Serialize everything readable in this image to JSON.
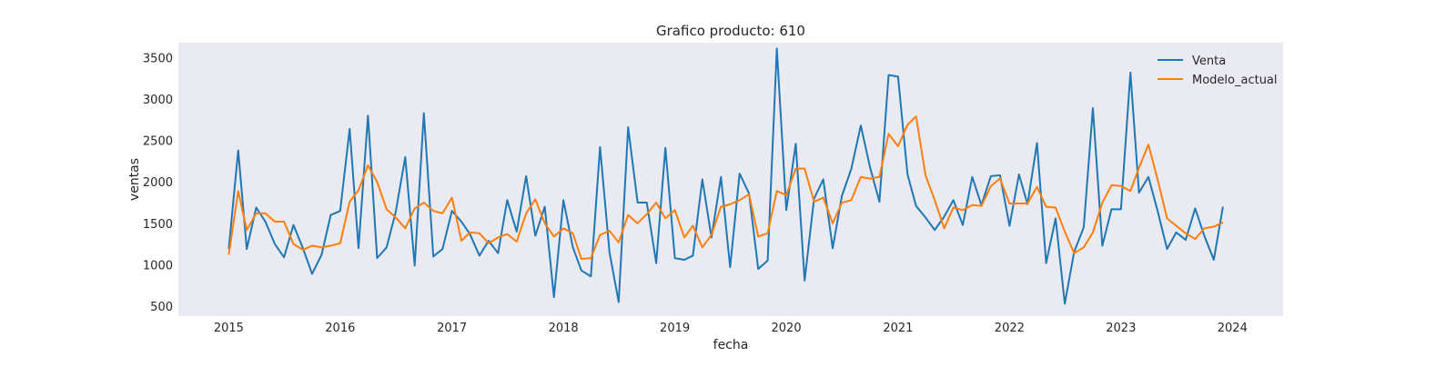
{
  "chart_data": {
    "type": "line",
    "title": "Grafico producto: 610",
    "xlabel": "fecha",
    "ylabel": "ventas",
    "x_ticks": [
      "2015",
      "2016",
      "2017",
      "2018",
      "2019",
      "2020",
      "2021",
      "2022",
      "2023",
      "2024"
    ],
    "y_ticks": [
      500,
      1000,
      1500,
      2000,
      2500,
      3000,
      3500
    ],
    "xlim": [
      "2014-07-20",
      "2024-06-15"
    ],
    "ylim": [
      380,
      3680
    ],
    "grid": false,
    "legend": "top-right",
    "x": [
      "2015-01",
      "2015-02",
      "2015-03",
      "2015-04",
      "2015-05",
      "2015-06",
      "2015-07",
      "2015-08",
      "2015-09",
      "2015-10",
      "2015-11",
      "2015-12",
      "2016-01",
      "2016-02",
      "2016-03",
      "2016-04",
      "2016-05",
      "2016-06",
      "2016-07",
      "2016-08",
      "2016-09",
      "2016-10",
      "2016-11",
      "2016-12",
      "2017-01",
      "2017-02",
      "2017-03",
      "2017-04",
      "2017-05",
      "2017-06",
      "2017-07",
      "2017-08",
      "2017-09",
      "2017-10",
      "2017-11",
      "2017-12",
      "2018-01",
      "2018-02",
      "2018-03",
      "2018-04",
      "2018-05",
      "2018-06",
      "2018-07",
      "2018-08",
      "2018-09",
      "2018-10",
      "2018-11",
      "2018-12",
      "2019-01",
      "2019-02",
      "2019-03",
      "2019-04",
      "2019-05",
      "2019-06",
      "2019-07",
      "2019-08",
      "2019-09",
      "2019-10",
      "2019-11",
      "2019-12",
      "2020-01",
      "2020-02",
      "2020-03",
      "2020-04",
      "2020-05",
      "2020-06",
      "2020-07",
      "2020-08",
      "2020-09",
      "2020-10",
      "2020-11",
      "2020-12",
      "2021-01",
      "2021-02",
      "2021-03",
      "2021-04",
      "2021-05",
      "2021-06",
      "2021-07",
      "2021-08",
      "2021-09",
      "2021-10",
      "2021-11",
      "2021-12",
      "2022-01",
      "2022-02",
      "2022-03",
      "2022-04",
      "2022-05",
      "2022-06",
      "2022-07",
      "2022-08",
      "2022-09",
      "2022-10",
      "2022-11",
      "2022-12",
      "2023-01",
      "2023-02",
      "2023-03",
      "2023-04",
      "2023-05",
      "2023-06",
      "2023-07",
      "2023-08",
      "2023-09",
      "2023-10",
      "2023-11",
      "2023-12"
    ],
    "series": [
      {
        "name": "Venta",
        "color": "#1f77b4",
        "values": [
          1190,
          2380,
          1190,
          1690,
          1520,
          1250,
          1090,
          1480,
          1200,
          890,
          1120,
          1600,
          1650,
          2640,
          1200,
          2800,
          1080,
          1210,
          1640,
          2300,
          990,
          2830,
          1100,
          1190,
          1650,
          1520,
          1370,
          1110,
          1290,
          1140,
          1780,
          1400,
          2070,
          1350,
          1700,
          610,
          1780,
          1210,
          930,
          860,
          2420,
          1150,
          550,
          2660,
          1750,
          1750,
          1020,
          2410,
          1080,
          1060,
          1110,
          2030,
          1330,
          2060,
          970,
          2100,
          1860,
          950,
          1050,
          3610,
          1660,
          2460,
          810,
          1800,
          2030,
          1200,
          1830,
          2160,
          2680,
          2180,
          1760,
          3290,
          3270,
          2090,
          1710,
          1570,
          1420,
          1580,
          1780,
          1480,
          2060,
          1720,
          2070,
          2080,
          1470,
          2090,
          1730,
          2470,
          1020,
          1560,
          530,
          1160,
          1450,
          2890,
          1230,
          1670,
          1670,
          3320,
          1870,
          2060,
          1650,
          1190,
          1390,
          1300,
          1680,
          1350,
          1060,
          1700
        ]
      },
      {
        "name": "Modelo_actual",
        "color": "#ff7f0e",
        "values": [
          1120,
          1890,
          1420,
          1620,
          1620,
          1520,
          1520,
          1250,
          1180,
          1230,
          1210,
          1230,
          1260,
          1760,
          1900,
          2200,
          2000,
          1670,
          1570,
          1440,
          1680,
          1750,
          1650,
          1620,
          1810,
          1290,
          1390,
          1380,
          1260,
          1330,
          1370,
          1280,
          1620,
          1790,
          1500,
          1340,
          1440,
          1380,
          1070,
          1080,
          1360,
          1410,
          1270,
          1600,
          1500,
          1610,
          1750,
          1560,
          1660,
          1330,
          1470,
          1210,
          1360,
          1700,
          1730,
          1780,
          1850,
          1340,
          1380,
          1890,
          1840,
          2160,
          2160,
          1760,
          1810,
          1500,
          1750,
          1780,
          2060,
          2040,
          2060,
          2580,
          2430,
          2690,
          2790,
          2080,
          1780,
          1440,
          1690,
          1660,
          1720,
          1710,
          1950,
          2040,
          1740,
          1740,
          1740,
          1940,
          1700,
          1690,
          1400,
          1140,
          1210,
          1390,
          1750,
          1960,
          1950,
          1890,
          2170,
          2450,
          2030,
          1560,
          1470,
          1380,
          1310,
          1440,
          1460,
          1510
        ]
      }
    ]
  }
}
